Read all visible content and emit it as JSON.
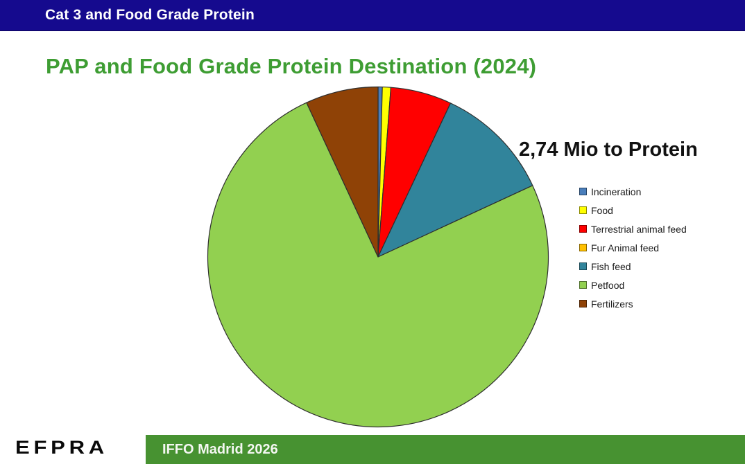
{
  "header": {
    "bar_title": "Cat 3 and Food Grade Protein",
    "bar_color": "#150A8E"
  },
  "slide": {
    "title": "PAP and Food Grade Protein Destination (2024)",
    "title_color": "#3E9D33"
  },
  "chart_data": {
    "type": "pie",
    "title": "PAP and Food Grade Protein Destination (2024)",
    "annotation": "2,74 Mio to Protein",
    "values_are": "percent",
    "start_angle_deg": 0,
    "direction": "clockwise",
    "legend_position": "right",
    "slice_border_color": "#2e2e2e",
    "slices": [
      {
        "label": "Incineration",
        "value": 0.4,
        "color": "#4A7EBB"
      },
      {
        "label": "Food",
        "value": 0.8,
        "color": "#FFFF00"
      },
      {
        "label": "Terrestrial animal feed",
        "value": 5.8,
        "color": "#FF0000"
      },
      {
        "label": "Fur Animal feed",
        "value": 0,
        "color": "#FFC000"
      },
      {
        "label": "Fish feed",
        "value": 11.1,
        "color": "#31849B"
      },
      {
        "label": "Petfood",
        "value": 75.0,
        "color": "#92D050"
      },
      {
        "label": "Fertilizers",
        "value": 6.9,
        "color": "#8F4206"
      }
    ]
  },
  "footer": {
    "logo_text": "EFPRA",
    "bar_text": "IFFO Madrid 2026",
    "bar_color": "#479231"
  }
}
